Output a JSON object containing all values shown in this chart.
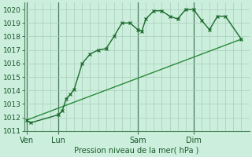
{
  "background_color": "#cceedd",
  "grid_color": "#aaccbb",
  "line_color_main": "#1a6b2a",
  "line_color_straight": "#2a8a3a",
  "x_ticks_labels": [
    "Ven",
    "Lun",
    "Sam",
    "Dim"
  ],
  "x_ticks_pos": [
    0,
    4,
    14,
    21
  ],
  "vline_x": [
    0,
    4,
    14,
    21
  ],
  "xlabel": "Pression niveau de la mer( hPa )",
  "ylim": [
    1011.0,
    1020.5
  ],
  "yticks": [
    1011,
    1012,
    1013,
    1014,
    1015,
    1016,
    1017,
    1018,
    1019,
    1020
  ],
  "xlim": [
    -0.3,
    27.3
  ],
  "series1_x": [
    0,
    0.5,
    4,
    4.5,
    5,
    5.5,
    6,
    7,
    8,
    9,
    10,
    11,
    12,
    13,
    14,
    14.5,
    15,
    16,
    17,
    18,
    19,
    20,
    21,
    22,
    23,
    24,
    25,
    27
  ],
  "series1_y": [
    1011.8,
    1011.6,
    1012.2,
    1012.5,
    1013.4,
    1013.7,
    1014.1,
    1016.0,
    1016.7,
    1017.0,
    1017.1,
    1018.0,
    1019.0,
    1019.0,
    1018.5,
    1018.4,
    1019.3,
    1019.9,
    1019.9,
    1019.5,
    1019.3,
    1020.0,
    1020.0,
    1019.2,
    1018.5,
    1019.5,
    1019.5,
    1017.8
  ],
  "series2_x": [
    0,
    27
  ],
  "series2_y": [
    1011.8,
    1017.8
  ],
  "num_xgrid": 28
}
